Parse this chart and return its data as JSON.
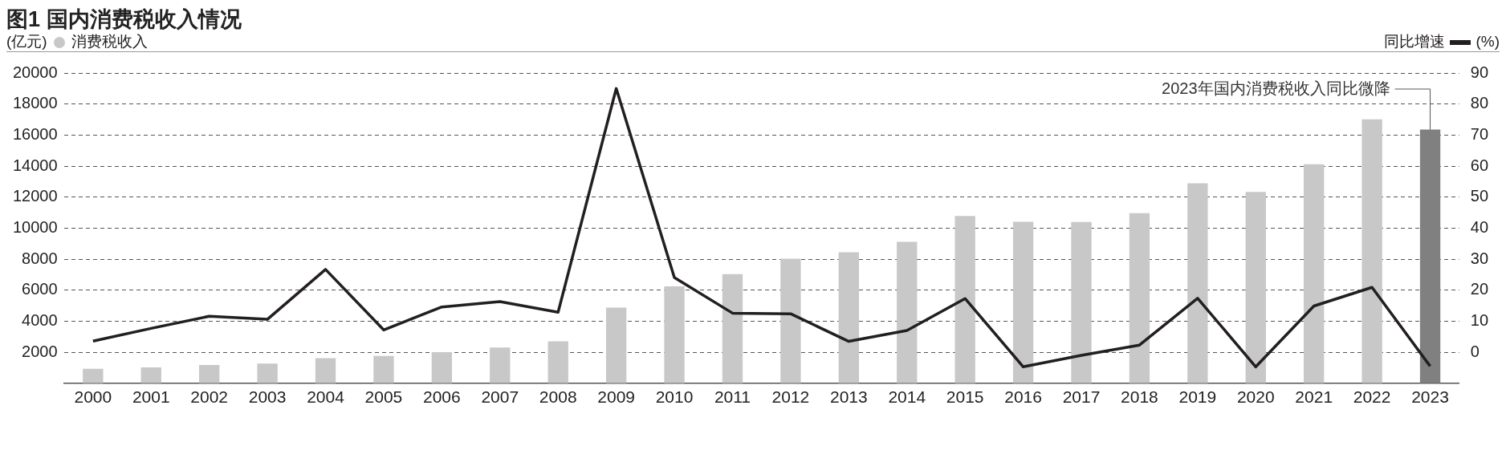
{
  "chart_data": {
    "type": "bar",
    "title": "图1 国内消费税收入情况",
    "ylabel": "(亿元)",
    "y2label": "(%)",
    "categories": [
      "2000",
      "2001",
      "2002",
      "2003",
      "2004",
      "2005",
      "2006",
      "2007",
      "2008",
      "2009",
      "2010",
      "2011",
      "2012",
      "2013",
      "2014",
      "2015",
      "2016",
      "2017",
      "2018",
      "2019",
      "2020",
      "2021",
      "2022",
      "2023"
    ],
    "series": [
      {
        "name": "消费税收入",
        "color": "#c8c8c8",
        "colors": [
          "#c8c8c8",
          "#c8c8c8",
          "#c8c8c8",
          "#c8c8c8",
          "#c8c8c8",
          "#c8c8c8",
          "#c8c8c8",
          "#c8c8c8",
          "#c8c8c8",
          "#c8c8c8",
          "#c8c8c8",
          "#c8c8c8",
          "#c8c8c8",
          "#c8c8c8",
          "#c8c8c8",
          "#c8c8c8",
          "#c8c8c8",
          "#c8c8c8",
          "#c8c8c8",
          "#c8c8c8",
          "#c8c8c8",
          "#c8c8c8",
          "#c8c8c8",
          "#808080"
        ],
        "values": [
          930,
          1020,
          1180,
          1270,
          1620,
          1760,
          2000,
          2310,
          2700,
          4870,
          6250,
          7040,
          8030,
          8450,
          9110,
          10780,
          10410,
          10400,
          10970,
          12890,
          12340,
          14120,
          17020,
          16350
        ]
      },
      {
        "name": "同比增速",
        "type": "line",
        "axis": "y2",
        "color": "#231f20",
        "values": [
          3.6,
          7.7,
          11.6,
          10.6,
          26.7,
          7.2,
          14.6,
          16.3,
          12.9,
          85.0,
          24.1,
          12.6,
          12.4,
          3.5,
          7.0,
          17.3,
          -4.7,
          -1.0,
          2.3,
          17.4,
          -4.7,
          14.9,
          20.9,
          -4.5
        ]
      }
    ],
    "ylim": [
      0,
      20000
    ],
    "yticks": [
      2000,
      4000,
      6000,
      8000,
      10000,
      12000,
      14000,
      16000,
      18000,
      20000
    ],
    "y2lim": [
      -10,
      90
    ],
    "y2ticks": [
      0,
      10,
      20,
      30,
      40,
      50,
      60,
      70,
      80,
      90
    ],
    "grid": "y",
    "legend": "top",
    "marker": "none",
    "annotations": [
      {
        "text": "2023年国内消费税收入同比微降",
        "x": "2023",
        "y": 16350
      }
    ]
  }
}
